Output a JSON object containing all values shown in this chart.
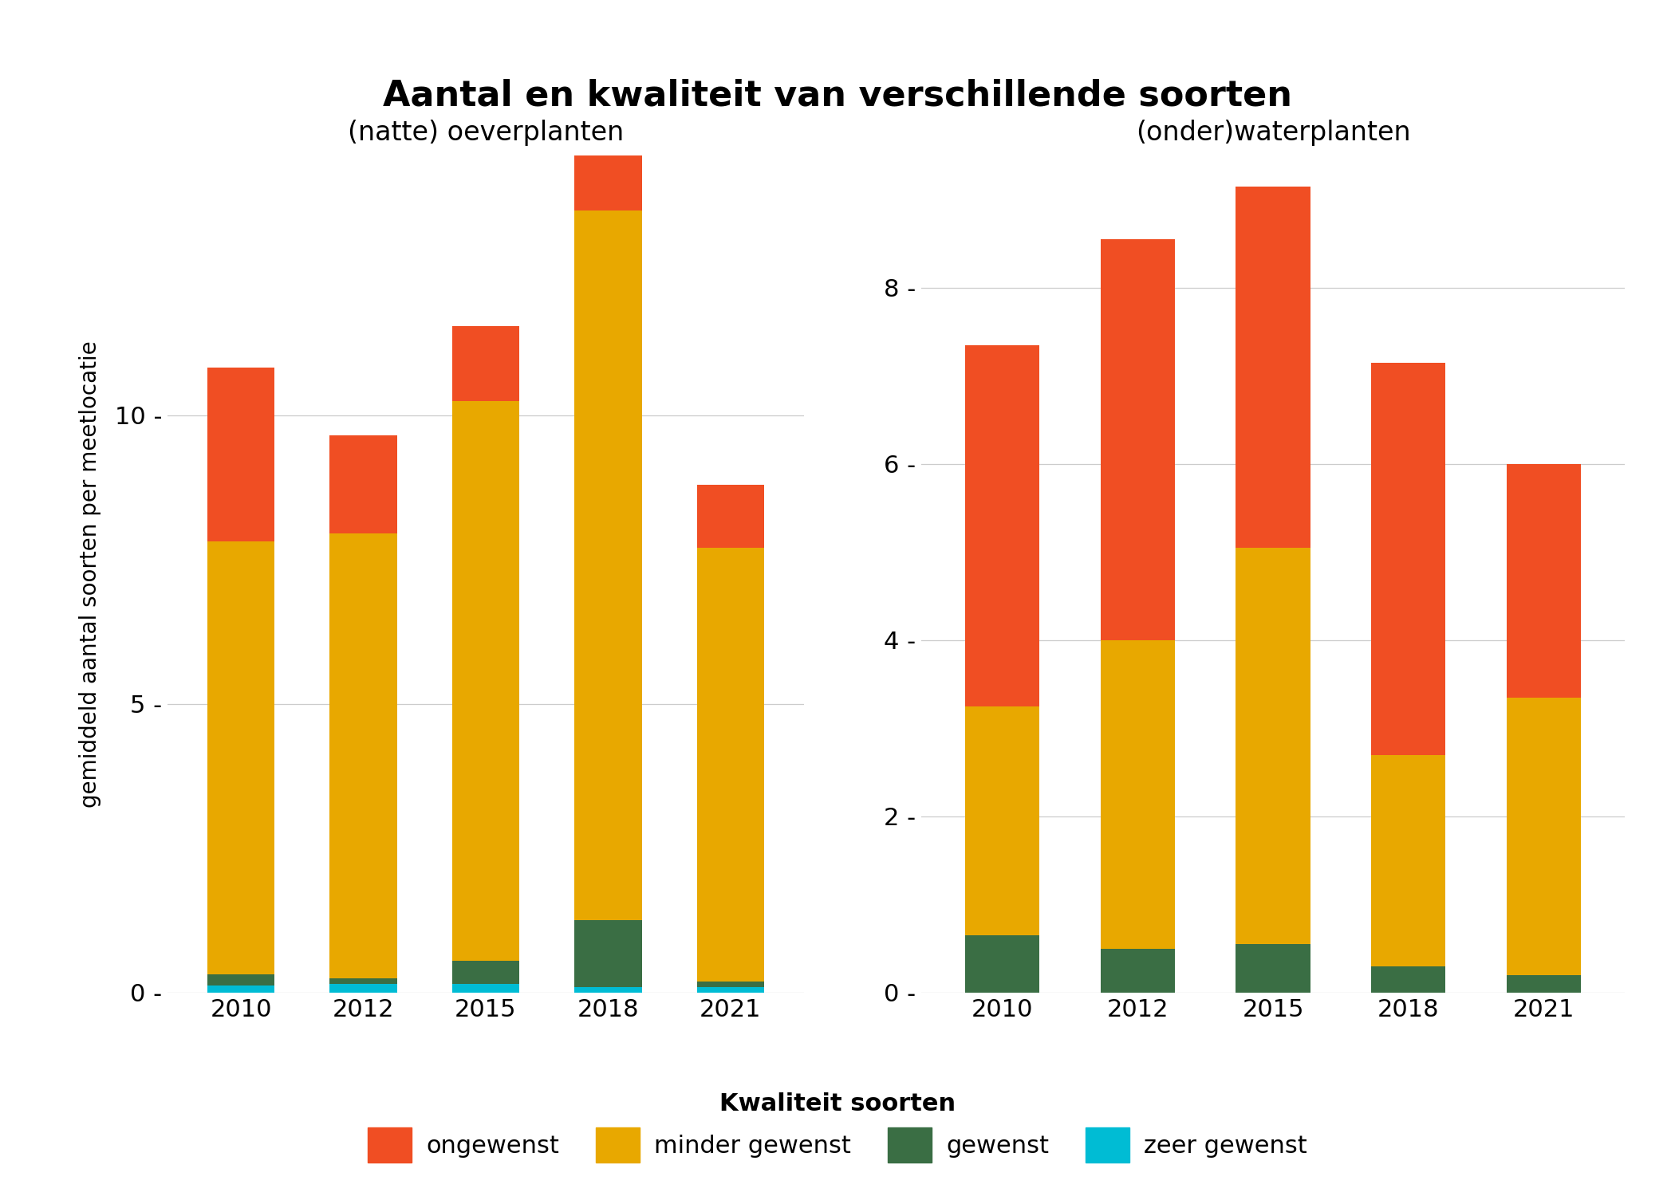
{
  "title": "Aantal en kwaliteit van verschillende soorten",
  "subtitle_left": "(natte) oeverplanten",
  "subtitle_right": "(onder)waterplanten",
  "ylabel": "gemiddeld aantal soorten per meetlocatie",
  "years": [
    2010,
    2012,
    2015,
    2018,
    2021
  ],
  "left": {
    "zeer_gewenst": [
      0.12,
      0.15,
      0.15,
      0.1,
      0.1
    ],
    "gewenst": [
      0.2,
      0.1,
      0.4,
      1.15,
      0.1
    ],
    "minder_gewenst": [
      7.5,
      7.7,
      9.7,
      12.3,
      7.5
    ],
    "ongewenst": [
      3.0,
      1.7,
      1.3,
      1.0,
      1.1
    ]
  },
  "right": {
    "zeer_gewenst": [
      0.0,
      0.0,
      0.0,
      0.0,
      0.0
    ],
    "gewenst": [
      0.65,
      0.5,
      0.55,
      0.3,
      0.2
    ],
    "minder_gewenst": [
      2.6,
      3.5,
      4.5,
      2.4,
      3.15
    ],
    "ongewenst": [
      4.1,
      4.55,
      4.1,
      4.45,
      2.65
    ]
  },
  "colors": {
    "ongewenst": "#F04E23",
    "minder_gewenst": "#E8A800",
    "gewenst": "#3A6E44",
    "zeer_gewenst": "#00BCD4"
  },
  "legend_labels": {
    "ongewenst": "ongewenst",
    "minder_gewenst": "minder gewenst",
    "gewenst": "gewenst",
    "zeer_gewenst": "zeer gewenst"
  },
  "legend_title": "Kwaliteit soorten",
  "left_ylim": [
    0,
    14.5
  ],
  "left_yticks": [
    0,
    5,
    10
  ],
  "right_ylim": [
    0,
    9.5
  ],
  "right_yticks": [
    0,
    2,
    4,
    6,
    8
  ],
  "background_color": "#FFFFFF",
  "grid_color": "#CCCCCC",
  "bar_width": 0.55
}
